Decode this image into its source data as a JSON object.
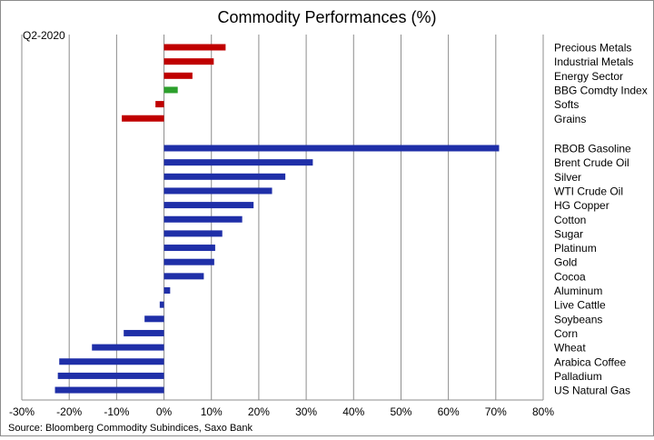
{
  "chart_data": {
    "type": "bar",
    "orientation": "horizontal",
    "title": "Commodity Performances (%)",
    "period_label": "Q2-2020",
    "source": "Source: Bloomberg Commodity Subindices, Saxo Bank",
    "xlim": [
      -30,
      80
    ],
    "x_ticks": [
      -30,
      -20,
      -10,
      0,
      10,
      20,
      30,
      40,
      50,
      60,
      70,
      80
    ],
    "x_tick_suffix": "%",
    "grid": "vertical",
    "colors": {
      "positive_index": "#c00000",
      "highlight": "#2ca02c",
      "commodity": "#1f2fa8"
    },
    "groups": [
      {
        "name": "indices",
        "categories": [
          "Precious Metals",
          "Industrial Metals",
          "Energy Sector",
          "BBG Comdty Index",
          "Softs",
          "Grains"
        ],
        "values": [
          13.0,
          10.5,
          6.0,
          2.9,
          -1.8,
          -8.9
        ],
        "colors": [
          "#c00000",
          "#c00000",
          "#c00000",
          "#2ca02c",
          "#c00000",
          "#c00000"
        ]
      },
      {
        "name": "commodities",
        "categories": [
          "RBOB Gasoline",
          "Brent Crude Oil",
          "Silver",
          "WTI Crude Oil",
          "HG Copper",
          "Cotton",
          "Sugar",
          "Platinum",
          "Gold",
          "Cocoa",
          "Aluminum",
          "Live Cattle",
          "Soybeans",
          "Corn",
          "Wheat",
          "Arabica Coffee",
          "Palladium",
          "US Natural Gas"
        ],
        "values": [
          70.7,
          31.4,
          25.6,
          22.8,
          18.9,
          16.5,
          12.3,
          10.8,
          10.6,
          8.4,
          1.3,
          -0.9,
          -4.1,
          -8.5,
          -15.2,
          -22.1,
          -22.4,
          -23.0
        ],
        "colors": [
          "#1f2fa8"
        ]
      }
    ]
  }
}
